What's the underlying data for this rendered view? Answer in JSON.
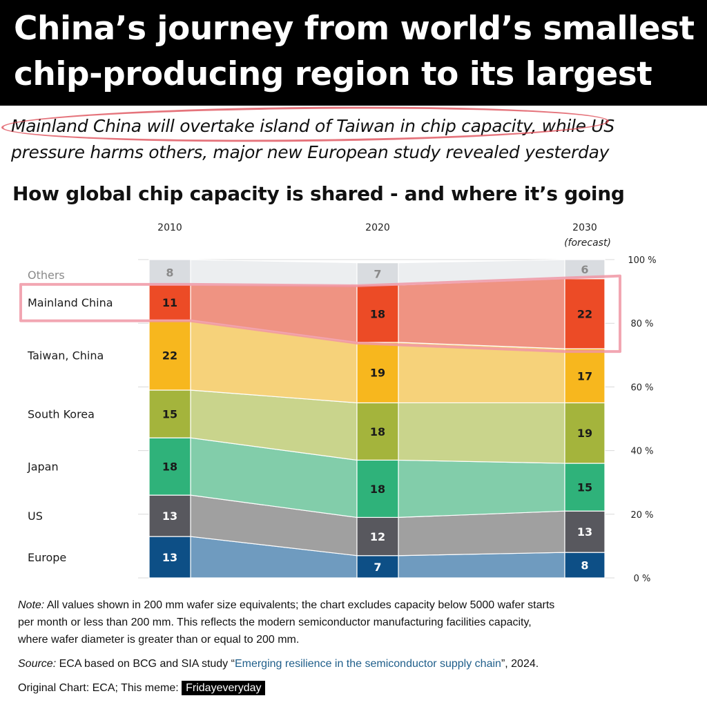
{
  "headline": {
    "line1": "China’s journey from world’s smallest",
    "line2": "chip-producing region to its largest"
  },
  "subtitle": {
    "line1": "Mainland China will overtake island of Taiwan in chip capacity, while US",
    "line2": "pressure harms others, major new European study revealed yesterday"
  },
  "chart_title": "How global chip capacity is shared - and where it’s going",
  "chart_data": {
    "type": "area",
    "title": "How global chip capacity is shared - and where it’s going",
    "unit": "%",
    "categories": [
      "2010",
      "2020",
      "2030"
    ],
    "category_notes": [
      "",
      "",
      "(forecast)"
    ],
    "ylim": [
      0,
      100
    ],
    "yticks": [
      "0 %",
      "20 %",
      "40 %",
      "60 %",
      "80 %",
      "100 %"
    ],
    "stack_order": "bottom-to-top",
    "series": [
      {
        "name": "Europe",
        "values": [
          13,
          7,
          8
        ],
        "color": "#0d4f86",
        "band_color": "#6f9bbf",
        "label_color": "#ffffff"
      },
      {
        "name": "US",
        "values": [
          13,
          12,
          13
        ],
        "color": "#58585e",
        "band_color": "#a0a0a0",
        "label_color": "#ffffff"
      },
      {
        "name": "Japan",
        "values": [
          18,
          18,
          15
        ],
        "color": "#2fb27a",
        "band_color": "#82cdaa",
        "label_color": "#1a1a1a"
      },
      {
        "name": "South Korea",
        "values": [
          15,
          18,
          19
        ],
        "color": "#a4b43c",
        "band_color": "#c9d48c",
        "label_color": "#1a1a1a"
      },
      {
        "name": "Taiwan, China",
        "values": [
          22,
          19,
          17
        ],
        "color": "#f7b71e",
        "band_color": "#f6d27a",
        "label_color": "#1a1a1a"
      },
      {
        "name": "Mainland China",
        "values": [
          11,
          18,
          22
        ],
        "color": "#ec4b26",
        "band_color": "#ef9382",
        "label_color": "#1a1a1a"
      },
      {
        "name": "Others",
        "values": [
          8,
          7,
          6
        ],
        "color": "#d9dce0",
        "band_color": "#eceef0",
        "label_color": "#8a8a8a"
      }
    ],
    "highlight": "Mainland China"
  },
  "notes": {
    "note_label": "Note:",
    "note_line1": " All values shown in 200 mm wafer size equivalents; the chart excludes capacity below 5000 wafer starts",
    "note_line2": "per month or less than 200 mm. This reflects the modern semiconductor manufacturing facilities capacity,",
    "note_line3": "where wafer diameter is greater than or equal to 200 mm.",
    "source_label": "Source:",
    "source_pre": " ECA based on BCG and SIA study “",
    "source_link": "Emerging resilience in the semiconductor supply chain",
    "source_post": "”, 2024."
  },
  "credit": {
    "text": "Original Chart: ECA; This meme: ",
    "badge": "Fridayeveryday"
  },
  "colors": {
    "annotation": "#e0606a",
    "link": "#1f5e8a"
  }
}
